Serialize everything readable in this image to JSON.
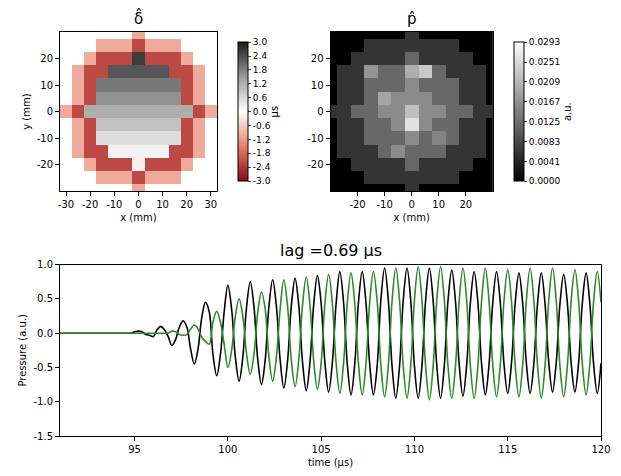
{
  "chart_data": [
    {
      "type": "heatmap",
      "title": "δ̂",
      "x": [
        -30,
        -25,
        -20,
        -15,
        -10,
        -5,
        0,
        5,
        10,
        15,
        20,
        25,
        30
      ],
      "y": [
        -30,
        -25,
        -20,
        -15,
        -10,
        -5,
        0,
        5,
        10,
        15,
        20,
        25,
        30
      ],
      "z": [
        [
          null,
          null,
          null,
          null,
          null,
          null,
          -1.0,
          null,
          null,
          null,
          null,
          null,
          null
        ],
        [
          null,
          null,
          null,
          -1.0,
          -1.0,
          -1.0,
          -2.2,
          -1.0,
          -1.0,
          -1.0,
          null,
          null,
          null
        ],
        [
          null,
          null,
          -1.0,
          -2.2,
          -2.2,
          -2.2,
          -0.2,
          -2.2,
          -2.2,
          -2.2,
          -1.0,
          null,
          null
        ],
        [
          null,
          -1.0,
          -2.2,
          -2.2,
          0.2,
          0.2,
          0.2,
          0.2,
          0.2,
          -2.2,
          -2.2,
          -1.0,
          null
        ],
        [
          null,
          -1.0,
          -2.2,
          0.5,
          0.5,
          0.5,
          0.5,
          0.5,
          0.5,
          0.5,
          -2.2,
          -1.0,
          null
        ],
        [
          null,
          -1.0,
          -2.2,
          0.9,
          0.9,
          0.9,
          0.9,
          0.9,
          0.9,
          0.9,
          -2.2,
          -1.0,
          null
        ],
        [
          -1.0,
          -2.2,
          1.2,
          1.2,
          1.2,
          1.2,
          1.2,
          1.2,
          1.2,
          1.2,
          1.2,
          -2.2,
          -1.0
        ],
        [
          null,
          -1.0,
          -2.2,
          1.6,
          1.6,
          1.6,
          1.6,
          1.6,
          1.6,
          1.6,
          -2.2,
          -1.0,
          null
        ],
        [
          null,
          -1.0,
          -2.2,
          1.9,
          1.9,
          1.9,
          1.9,
          1.9,
          1.9,
          1.9,
          -2.2,
          -1.0,
          null
        ],
        [
          null,
          -1.0,
          -2.2,
          -2.2,
          2.3,
          2.3,
          2.3,
          2.3,
          2.3,
          -2.2,
          -2.2,
          -1.0,
          null
        ],
        [
          null,
          null,
          -1.0,
          -2.2,
          -2.2,
          -2.2,
          2.6,
          -2.2,
          -2.2,
          -2.2,
          -1.0,
          null,
          null
        ],
        [
          null,
          null,
          null,
          -1.0,
          -1.0,
          -1.0,
          -2.2,
          -1.0,
          -1.0,
          -1.0,
          null,
          null,
          null
        ],
        [
          null,
          null,
          null,
          null,
          null,
          null,
          -1.0,
          null,
          null,
          null,
          null,
          null,
          null
        ]
      ],
      "xlim": [
        -32.5,
        32.5
      ],
      "ylim": [
        -30,
        30
      ],
      "xticks": [
        -30,
        -20,
        -10,
        0,
        10,
        20,
        30
      ],
      "yticks": [
        -20,
        -10,
        0,
        10,
        20
      ],
      "x_label": "x (mm)",
      "y_label": "y (mm)",
      "colorbar": {
        "range": [
          -3,
          3
        ],
        "title": "μs",
        "ticks": [
          {
            "value": -3,
            "label": "-3.0"
          },
          -2.4,
          -1.8,
          -1.2,
          -0.6,
          {
            "value": 0,
            "label": "0.0"
          },
          0.6,
          1.2,
          1.8,
          2.4,
          {
            "value": 3,
            "label": "3.0"
          }
        ]
      }
    },
    {
      "type": "heatmap",
      "title": "p̂",
      "x": [
        -30,
        -25,
        -20,
        -15,
        -10,
        -5,
        0,
        5,
        10,
        15,
        20,
        25,
        30
      ],
      "y": [
        -30,
        -25,
        -20,
        -15,
        -10,
        -5,
        0,
        5,
        10,
        15,
        20,
        25,
        30
      ],
      "z": [
        [
          null,
          null,
          null,
          null,
          null,
          null,
          0.006,
          null,
          null,
          null,
          null,
          null,
          null
        ],
        [
          null,
          null,
          null,
          0.006,
          0.006,
          0.006,
          0.006,
          0.006,
          0.006,
          0.006,
          null,
          null,
          null
        ],
        [
          null,
          null,
          0.006,
          0.006,
          0.006,
          0.006,
          0.012,
          0.006,
          0.006,
          0.006,
          0.006,
          null,
          null
        ],
        [
          null,
          0.006,
          0.006,
          0.006,
          0.012,
          0.016,
          0.012,
          0.012,
          0.012,
          0.006,
          0.006,
          0.006,
          null
        ],
        [
          null,
          0.006,
          0.006,
          0.012,
          0.012,
          0.012,
          0.016,
          0.012,
          0.015,
          0.012,
          0.006,
          0.006,
          null
        ],
        [
          null,
          0.006,
          0.006,
          0.012,
          0.012,
          0.016,
          0.026,
          0.016,
          0.012,
          0.012,
          0.006,
          0.006,
          null
        ],
        [
          0.006,
          0.006,
          0.012,
          0.012,
          0.016,
          0.016,
          0.022,
          0.016,
          0.016,
          0.012,
          0.012,
          0.006,
          0.006
        ],
        [
          null,
          0.006,
          0.006,
          0.012,
          0.019,
          0.016,
          0.016,
          0.016,
          0.012,
          0.012,
          0.006,
          0.006,
          null
        ],
        [
          null,
          0.006,
          0.006,
          0.012,
          0.012,
          0.012,
          0.016,
          0.012,
          0.012,
          0.012,
          0.006,
          0.006,
          null
        ],
        [
          null,
          0.006,
          0.006,
          0.017,
          0.012,
          0.012,
          0.02,
          0.023,
          0.012,
          0.006,
          0.006,
          0.006,
          null
        ],
        [
          null,
          null,
          0.006,
          0.006,
          0.006,
          0.006,
          0.012,
          0.006,
          0.006,
          0.006,
          0.006,
          null,
          null
        ],
        [
          null,
          null,
          null,
          0.006,
          0.006,
          0.006,
          0.006,
          0.006,
          0.006,
          0.006,
          null,
          null,
          null
        ],
        [
          null,
          null,
          null,
          null,
          null,
          null,
          0.006,
          null,
          null,
          null,
          null,
          null,
          null
        ]
      ],
      "xlim": [
        -30,
        30
      ],
      "ylim": [
        -30,
        30
      ],
      "xticks": [
        -20,
        -10,
        0,
        10,
        20
      ],
      "yticks": [
        -20,
        -10,
        0,
        10,
        20
      ],
      "x_label": "x (mm)",
      "colorbar": {
        "range": [
          0,
          0.0293
        ],
        "title": "a.u.",
        "ticks": [
          {
            "value": 0,
            "label": "0.0000"
          },
          0.0041,
          0.0083,
          0.0125,
          0.0167,
          0.0209,
          0.0251,
          0.0293
        ]
      }
    },
    {
      "type": "line",
      "title": "lag =0.69 μs",
      "x_label": "time (μs)",
      "y_label": "Pressure (a.u.)",
      "xlim": [
        91,
        120
      ],
      "ylim": [
        -1.5,
        1.0
      ],
      "xticks": [
        95,
        100,
        105,
        110,
        115,
        120
      ],
      "yticks": [
        -1.5,
        {
          "value": -1.0,
          "label": "-1.0"
        },
        -0.5,
        {
          "value": 0,
          "label": "0.0"
        },
        0.5,
        {
          "value": 1.0,
          "label": "1.0"
        }
      ],
      "x": [
        91,
        91.2,
        91.4,
        91.6,
        91.8,
        92,
        92.2,
        92.4,
        92.6,
        92.8,
        93,
        93.2,
        93.4,
        93.6,
        93.8,
        94,
        94.2,
        94.4,
        94.6,
        94.8,
        95,
        95.2,
        95.4,
        95.6,
        95.8,
        96,
        96.2,
        96.4,
        96.6,
        96.8,
        97,
        97.2,
        97.4,
        97.6,
        97.8,
        98,
        98.2,
        98.4,
        98.6,
        98.8,
        99,
        99.2,
        99.4,
        99.6,
        99.8,
        100,
        100.2,
        100.4,
        100.6,
        100.8,
        101,
        101.2,
        101.4,
        101.6,
        101.8,
        102,
        102.2,
        102.4,
        102.6,
        102.8,
        103,
        103.2,
        103.4,
        103.6,
        103.8,
        104,
        104.2,
        104.4,
        104.6,
        104.8,
        105,
        105.2,
        105.4,
        105.6,
        105.8,
        106,
        106.2,
        106.4,
        106.6,
        106.8,
        107,
        107.2,
        107.4,
        107.6,
        107.8,
        108,
        108.2,
        108.4,
        108.6,
        108.8,
        109,
        109.2,
        109.4,
        109.6,
        109.8,
        110,
        110.2,
        110.4,
        110.6,
        110.8,
        111,
        111.2,
        111.4,
        111.6,
        111.8,
        112,
        112.2,
        112.4,
        112.6,
        112.8,
        113,
        113.2,
        113.4,
        113.6,
        113.8,
        114,
        114.2,
        114.4,
        114.6,
        114.8,
        115,
        115.2,
        115.4,
        115.6,
        115.8,
        116,
        116.2,
        116.4,
        116.6,
        116.8,
        117,
        117.2,
        117.4,
        117.6,
        117.8,
        118,
        118.2,
        118.4,
        118.6,
        118.8,
        119,
        119.2,
        119.4,
        119.6,
        119.8,
        120
      ],
      "series": [
        {
          "color": "#000000",
          "values": [
            0,
            0,
            0,
            0,
            0,
            0,
            0,
            0,
            0,
            0,
            0,
            0,
            0,
            0,
            0,
            0,
            0,
            0,
            0,
            0,
            0.02,
            0.03,
            0.02,
            -0.02,
            -0.03,
            -0.05,
            0.05,
            0.1,
            0.05,
            -0.05,
            -0.18,
            -0.09,
            0.09,
            0.18,
            0.09,
            -0.23,
            -0.45,
            -0.23,
            0.23,
            0.45,
            0.31,
            -0.31,
            -0.62,
            -0.31,
            0.31,
            0.7,
            0.35,
            -0.35,
            -0.7,
            -0.35,
            0.38,
            0.75,
            0.38,
            -0.38,
            -0.75,
            -0.39,
            0.39,
            0.78,
            0.39,
            -0.39,
            -0.8,
            -0.4,
            0.4,
            0.8,
            0.4,
            -0.42,
            -0.84,
            -0.42,
            0.42,
            0.84,
            0.43,
            -0.43,
            -0.86,
            -0.43,
            0.43,
            0.9,
            0.45,
            -0.45,
            -0.9,
            -0.45,
            0.45,
            0.9,
            0.45,
            -0.45,
            -0.9,
            -0.48,
            0.48,
            0.95,
            0.48,
            -0.48,
            -0.95,
            -0.48,
            0.48,
            0.95,
            0.48,
            -0.48,
            -0.95,
            -0.48,
            0.48,
            0.95,
            0.48,
            -0.48,
            -0.95,
            -0.48,
            0.48,
            0.92,
            0.46,
            -0.46,
            -0.92,
            -0.46,
            0.45,
            0.9,
            0.45,
            -0.45,
            -0.9,
            -0.45,
            0.45,
            0.9,
            0.45,
            -0.45,
            -0.88,
            -0.44,
            0.44,
            0.88,
            0.44,
            -0.44,
            -0.88,
            -0.44,
            0.44,
            0.88,
            0.43,
            -0.43,
            -0.86,
            -0.43,
            0.43,
            0.86,
            0.43,
            -0.43,
            -0.86,
            -0.43,
            0.44,
            0.88,
            0.44,
            -0.44,
            -0.88,
            -0.44
          ]
        },
        {
          "color": "#2a8a2a",
          "values": [
            0,
            0,
            0,
            0,
            0,
            0,
            0,
            0,
            0,
            0,
            0,
            0,
            0,
            0,
            0,
            0,
            0,
            0,
            0,
            0,
            0,
            0,
            0,
            0,
            0,
            0,
            0,
            0,
            0,
            0,
            0.03,
            0.02,
            -0.02,
            -0.03,
            -0.02,
            0.06,
            0.12,
            0.06,
            -0.06,
            -0.12,
            -0.16,
            0.16,
            0.32,
            0.16,
            -0.16,
            -0.5,
            -0.25,
            0.25,
            0.5,
            0.25,
            -0.3,
            -0.6,
            -0.3,
            0.3,
            0.6,
            0.35,
            -0.35,
            -0.7,
            -0.35,
            0.35,
            0.78,
            0.39,
            -0.39,
            -0.78,
            -0.39,
            0.41,
            0.82,
            0.41,
            -0.41,
            -0.82,
            -0.43,
            0.43,
            0.86,
            0.43,
            -0.43,
            -0.88,
            -0.44,
            0.44,
            0.88,
            0.44,
            -0.45,
            -0.9,
            -0.45,
            0.45,
            0.9,
            0.47,
            -0.47,
            -0.93,
            -0.47,
            0.47,
            0.95,
            0.48,
            -0.48,
            -0.95,
            -0.48,
            0.49,
            0.97,
            0.49,
            -0.49,
            -0.97,
            -0.49,
            0.49,
            0.97,
            0.49,
            -0.49,
            -0.95,
            -0.48,
            0.48,
            0.95,
            0.48,
            -0.48,
            -0.95,
            -0.48,
            0.48,
            0.95,
            0.47,
            -0.47,
            -0.93,
            -0.47,
            0.47,
            0.93,
            0.47,
            -0.47,
            -0.93,
            -0.47,
            0.48,
            0.95,
            0.48,
            -0.48,
            -0.95,
            -0.48,
            0.48,
            0.95,
            0.48,
            -0.48,
            -0.93,
            -0.47,
            0.47,
            0.93,
            0.47,
            -0.45,
            -0.9,
            -0.45,
            0.45,
            0.9,
            0.45
          ]
        }
      ]
    }
  ]
}
